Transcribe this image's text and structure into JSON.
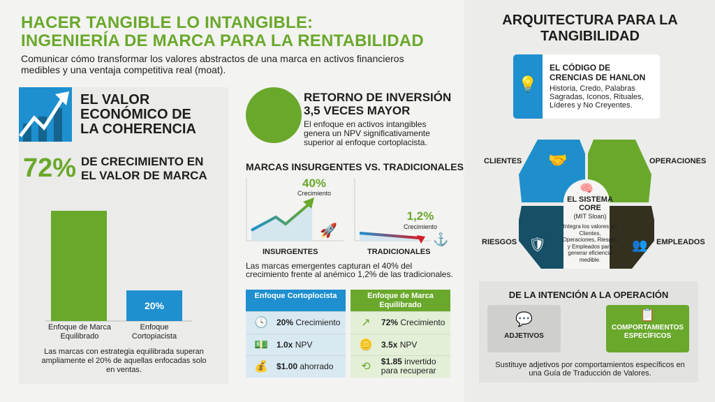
{
  "header": {
    "title_line1": "HACER TANGIBLE LO INTANGIBLE:",
    "title_line2": "INGENIERÍA DE MARCA PARA LA RENTABILIDAD",
    "subtitle": "Comunicar cómo transformar los valores abstractos de una marca en activos financieros medibles y una ventaja competitiva real (moat)."
  },
  "coherence": {
    "icon": "growth-chart-icon",
    "heading_lines": [
      "EL VALOR",
      "ECONÓMICO DE",
      "LA COHERENCIA"
    ],
    "big_stat": "72%",
    "stat_lines": [
      "DE CRECIMIENTO EN",
      "EL VALOR DE MARCA"
    ],
    "caption": "Las marcas con estrategia equilibrada superan ampliamente el 20% de aquellas enfocadas solo en ventas."
  },
  "chart_data": {
    "type": "bar",
    "categories": [
      "Enfoque de Marca Equilibrado",
      "Enfoque Cortopiacista"
    ],
    "values": [
      72,
      20
    ],
    "data_labels": [
      "",
      "20%"
    ],
    "colors": [
      "#6aa82c",
      "#1e8fcf"
    ]
  },
  "roi": {
    "heading_lines": [
      "RETORNO DE INVERSIÓN",
      "3,5 VECES MAYOR"
    ],
    "text": "El enfoque en activos intangibles genera un NPV significativamente superior al enfoque cortoplacista."
  },
  "insurgents": {
    "heading": "MARCAS INSURGENTES VS. TRADICIONALES",
    "left": {
      "value": "40%",
      "sub": "Crecimiento",
      "label": "INSURGENTES",
      "icon": "rocket-icon"
    },
    "right": {
      "value": "1,2%",
      "sub": "Crecimiento",
      "label": "TRADICIONALES",
      "icon": "anchor-icon"
    },
    "caption": "Las marcas emergentes capturan el 40% del crecimiento frente al anémico 1,2% de las tradicionales."
  },
  "comparison": [
    {
      "header": "Enfoque Cortoplocista",
      "color": "#1e8fcf",
      "bg": "#d8e9f2",
      "rows": [
        {
          "icon": "clock-icon",
          "bold": "20%",
          "text": " Crecimiento"
        },
        {
          "icon": "banknote-icon",
          "bold": "1.0x",
          "text": " NPV"
        },
        {
          "icon": "money-bag-icon",
          "bold": "$1.00",
          "text": " ahorrado"
        }
      ]
    },
    {
      "header": "Enfoque de Marca Equilibrado",
      "color": "#6aa82c",
      "bg": "#e4efd8",
      "rows": [
        {
          "icon": "trend-up-icon",
          "bold": "72%",
          "text": " Crecimiento"
        },
        {
          "icon": "coins-icon",
          "bold": "3.5x",
          "text": " NPV"
        },
        {
          "icon": "refund-dollar-icon",
          "bold": "$1.85",
          "text": " invertido para recuperar"
        }
      ]
    }
  ],
  "architecture": {
    "title_lines": [
      "ARQUITECTURA PARA LA",
      "TANGIBILIDAD"
    ],
    "hanlon": {
      "icon": "lightbulb-icon",
      "heading_lines": [
        "EL CÓDIGO DE",
        "CRENCIAS DE HANLON"
      ],
      "text": "Historia, Credo, Palabras Sagradas, Iconos, Rituales, Líderes y No Creyentes."
    },
    "core": {
      "icon": "brain-icon",
      "heading_lines": [
        "EL SISTEMA",
        "CORE"
      ],
      "sub": "(MIT Sloan)",
      "text": "Integra los valores en Clientes, Operaciones, Riesgos y Empleados para generar eficiencia medible."
    },
    "quadrants": {
      "clientes": "CLIENTES",
      "operaciones": "OPERACIONES",
      "riesgos": "RIESGOS",
      "empleados": "EMPLEADOS"
    },
    "colors": {
      "clientes": "#1f8fcc",
      "operaciones": "#6aa82c",
      "riesgos": "#164f66",
      "empleados": "#33301f"
    }
  },
  "intention": {
    "heading": "DE LA INTENCIÓN A LA OPERACIÓN",
    "left": {
      "icon": "question-bubble-icon",
      "label": "ADJETIVOS"
    },
    "right": {
      "icon": "checklist-icon",
      "label_lines": [
        "COMPORTAMIENTOS",
        "ESPECÍFICOS"
      ]
    },
    "caption": "Sustituye adjetivos por comportamientos específicos en una Guía de Traducción de Valores."
  }
}
